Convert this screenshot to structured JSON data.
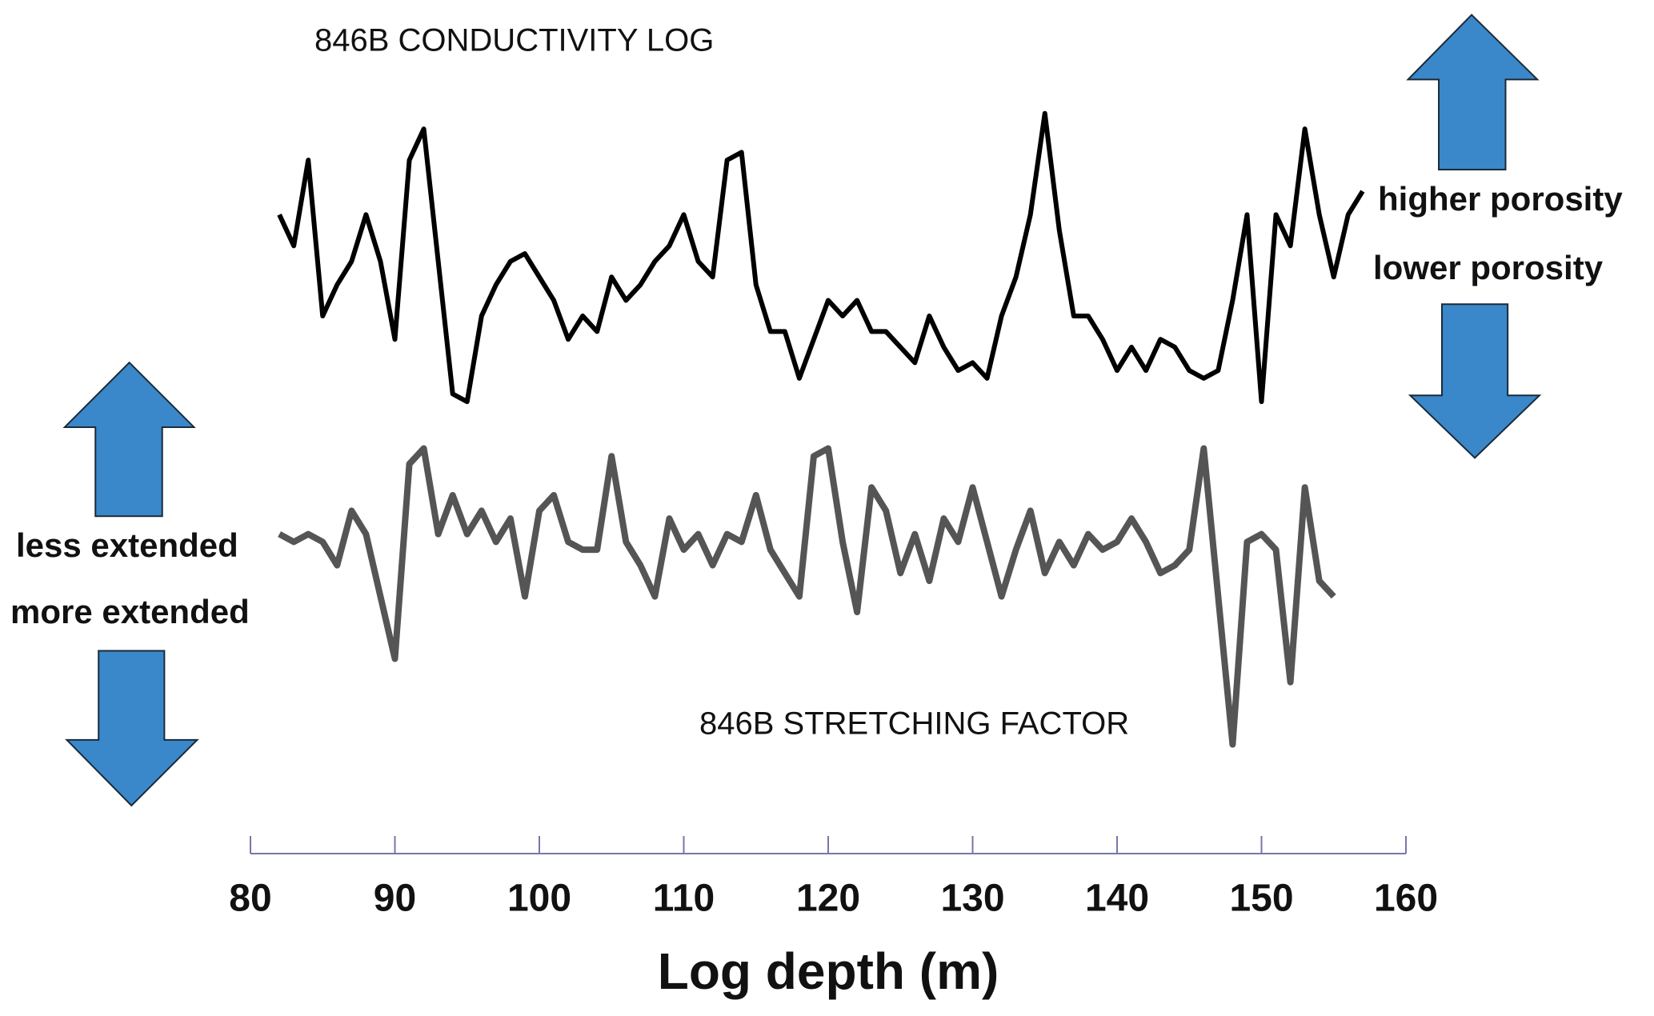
{
  "chart_data": {
    "type": "line",
    "title": "846B CONDUCTIVITY LOG",
    "x_label": "Log depth (m)",
    "annotations": [
      "846B STRETCHING FACTOR",
      "higher porosity",
      "lower porosity",
      "less extended",
      "more extended"
    ],
    "x": [
      82,
      83,
      84,
      85,
      86,
      87,
      88,
      89,
      90,
      91,
      92,
      93,
      94,
      95,
      96,
      97,
      98,
      99,
      100,
      101,
      102,
      103,
      104,
      105,
      106,
      107,
      108,
      109,
      110,
      111,
      112,
      113,
      114,
      115,
      116,
      117,
      118,
      119,
      120,
      121,
      122,
      123,
      124,
      125,
      126,
      127,
      128,
      129,
      130,
      131,
      132,
      133,
      134,
      135,
      136,
      137,
      138,
      139,
      140,
      141,
      142,
      143,
      144,
      145,
      146,
      147,
      148,
      149,
      150,
      151,
      152,
      153,
      154,
      155,
      156,
      157
    ],
    "series": [
      {
        "name": "846B conductivity log",
        "color": "#000000",
        "values": [
          82,
          78,
          89,
          69,
          73,
          76,
          82,
          76,
          66,
          89,
          93,
          76,
          59,
          58,
          69,
          73,
          76,
          77,
          74,
          71,
          66,
          69,
          67,
          74,
          71,
          73,
          76,
          78,
          82,
          76,
          74,
          89,
          90,
          73,
          67,
          67,
          61,
          66,
          71,
          69,
          71,
          67,
          67,
          65,
          63,
          69,
          65,
          62,
          63,
          61,
          69,
          74,
          82,
          95,
          80,
          69,
          69,
          66,
          62,
          65,
          62,
          66,
          65,
          62,
          61,
          62,
          71,
          82,
          58,
          82,
          78,
          93,
          82,
          74,
          82,
          85
        ]
      },
      {
        "name": "846B stretching factor",
        "color": "#555555",
        "values": [
          41,
          40,
          41,
          40,
          37,
          44,
          41,
          33,
          25,
          50,
          52,
          41,
          46,
          41,
          44,
          40,
          43,
          33,
          44,
          46,
          40,
          39,
          39,
          51,
          40,
          37,
          33,
          43,
          39,
          41,
          37,
          41,
          40,
          46,
          39,
          36,
          33,
          51,
          52,
          40,
          31,
          47,
          44,
          36,
          41,
          35,
          43,
          40,
          47,
          40,
          33,
          39,
          44,
          36,
          40,
          37,
          41,
          39,
          40,
          43,
          40,
          36,
          37,
          39,
          52,
          33,
          14,
          40,
          41,
          39,
          22,
          47,
          35,
          33,
          null,
          null
        ]
      }
    ],
    "xlim": [
      80,
      160
    ],
    "xticks": [
      80,
      90,
      100,
      110,
      120,
      130,
      140,
      150,
      160
    ],
    "ylim": [
      0,
      100
    ]
  }
}
